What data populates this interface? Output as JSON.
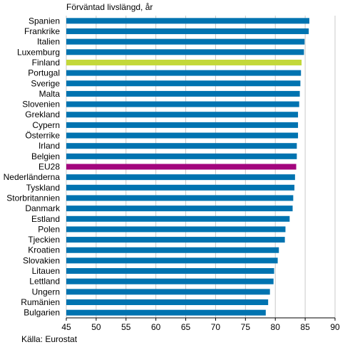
{
  "chart_data": {
    "type": "bar",
    "orientation": "horizontal",
    "title": "",
    "ylabel": "Förväntad livslängd, år",
    "xlabel": "",
    "xlim": [
      45,
      90
    ],
    "xticks": [
      45,
      50,
      55,
      60,
      65,
      70,
      75,
      80,
      85,
      90
    ],
    "grid": true,
    "legend": "none",
    "colors": {
      "default": "#0073b0",
      "Finland": "#c3d83a",
      "EU28": "#a3057d",
      "grid": "#c8c8c8"
    },
    "categories": [
      "Spanien",
      "Frankrike",
      "Italien",
      "Luxemburg",
      "Finland",
      "Portugal",
      "Sverige",
      "Malta",
      "Slovenien",
      "Grekland",
      "Cypern",
      "Österrike",
      "Irland",
      "Belgien",
      "EU28",
      "Nederländerna",
      "Tyskland",
      "Storbritannien",
      "Danmark",
      "Estland",
      "Polen",
      "Tjeckien",
      "Kroatien",
      "Slovakien",
      "Litauen",
      "Lettland",
      "Ungern",
      "Rumänien",
      "Bulgarien"
    ],
    "values": [
      85.7,
      85.6,
      84.9,
      84.8,
      84.4,
      84.3,
      84.2,
      84.1,
      84.0,
      83.8,
      83.8,
      83.8,
      83.6,
      83.6,
      83.5,
      83.3,
      83.2,
      83.0,
      82.9,
      82.4,
      81.7,
      81.6,
      80.6,
      80.4,
      79.8,
      79.7,
      79.1,
      78.8,
      78.4
    ]
  },
  "header": {
    "axis_title": "Förväntad livslängd, år"
  },
  "footer": {
    "source": "Källa: Eurostat"
  }
}
